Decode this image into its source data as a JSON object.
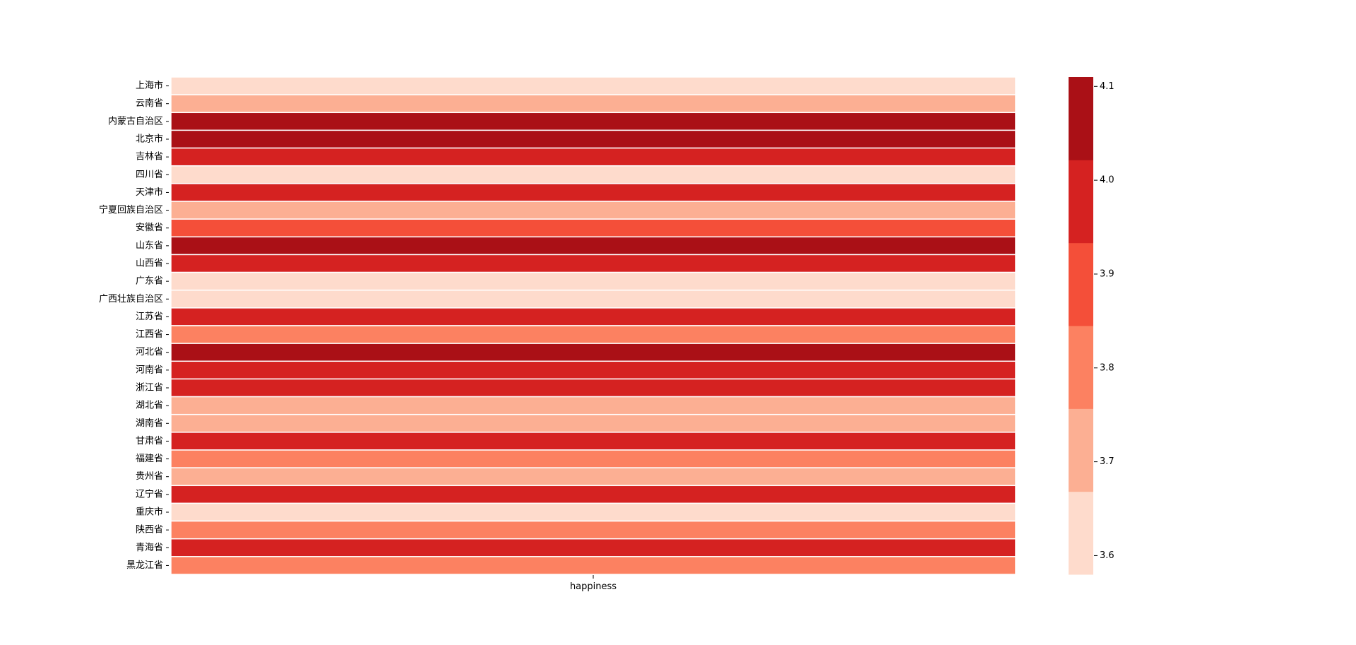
{
  "chart_data": {
    "type": "heatmap",
    "title": "",
    "xlabel": "",
    "ylabel": "",
    "columns": [
      "happiness"
    ],
    "rows": [
      "上海市",
      "云南省",
      "内蒙古自治区",
      "北京市",
      "吉林省",
      "四川省",
      "天津市",
      "宁夏回族自治区",
      "安徽省",
      "山东省",
      "山西省",
      "广东省",
      "广西壮族自治区",
      "江苏省",
      "江西省",
      "河北省",
      "河南省",
      "浙江省",
      "湖北省",
      "湖南省",
      "甘肃省",
      "福建省",
      "贵州省",
      "辽宁省",
      "重庆市",
      "陕西省",
      "青海省",
      "黑龙江省"
    ],
    "values": [
      3.62,
      3.72,
      4.08,
      4.07,
      3.98,
      3.61,
      3.98,
      3.71,
      3.88,
      4.06,
      3.97,
      3.63,
      3.62,
      3.97,
      3.8,
      4.06,
      3.97,
      3.98,
      3.72,
      3.71,
      3.97,
      3.79,
      3.71,
      3.98,
      3.62,
      3.8,
      3.97,
      3.8
    ],
    "colorbar": {
      "min": 3.58,
      "max": 4.11,
      "ticks": [
        3.6,
        3.7,
        3.8,
        3.9,
        4.0,
        4.1
      ],
      "tick_labels": [
        "3.6",
        "3.7",
        "3.8",
        "3.9",
        "4.0",
        "4.1"
      ],
      "colors": [
        "#fedbcc",
        "#fcaf93",
        "#fc8161",
        "#f44f39",
        "#d52221",
        "#aa1016"
      ]
    },
    "grid": false,
    "legend": "colorbar-right"
  }
}
